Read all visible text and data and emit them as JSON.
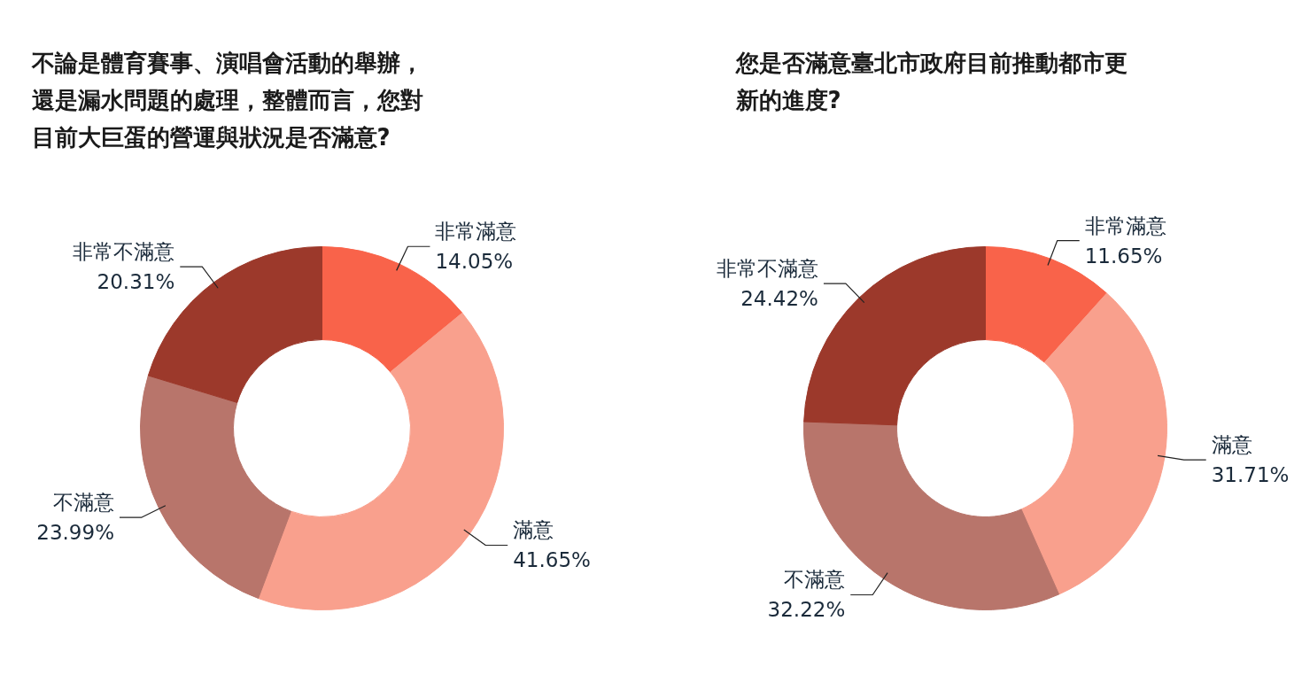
{
  "chart_data": [
    {
      "type": "donut",
      "title": "不論是體育賽事、演唱會活動的舉辦，還是漏水問題的處理，整體而言，您對目前大巨蛋的營運與狀況是否滿意?",
      "categories": [
        "非常滿意",
        "滿意",
        "不滿意",
        "非常不滿意"
      ],
      "values": [
        14.05,
        41.65,
        23.99,
        20.31
      ],
      "value_labels": [
        "14.05%",
        "41.65%",
        "23.99%",
        "20.31%"
      ],
      "colors": [
        "#f9634a",
        "#f9a08d",
        "#b8756b",
        "#9c392b"
      ],
      "legend": false
    },
    {
      "type": "donut",
      "title": "您是否滿意臺北市政府目前推動都市更新的進度?",
      "categories": [
        "非常滿意",
        "滿意",
        "不滿意",
        "非常不滿意"
      ],
      "values": [
        11.65,
        31.71,
        32.22,
        24.42
      ],
      "value_labels": [
        "11.65%",
        "31.71%",
        "32.22%",
        "24.42%"
      ],
      "colors": [
        "#f9634a",
        "#f9a08d",
        "#b8756b",
        "#9c392b"
      ],
      "legend": false
    }
  ]
}
